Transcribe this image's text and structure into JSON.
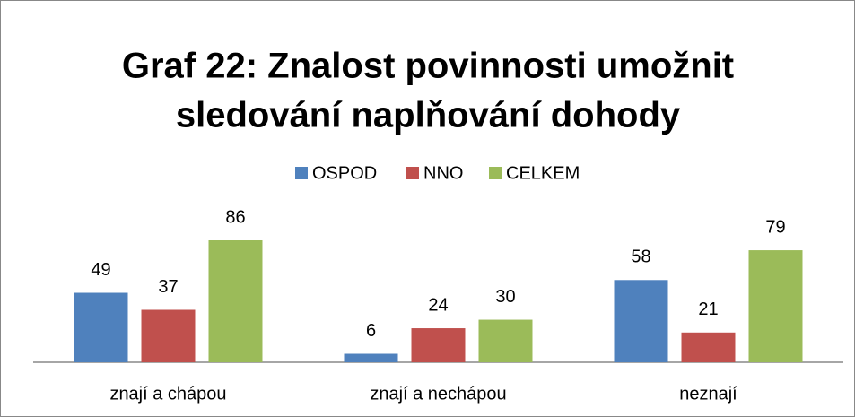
{
  "chart_data": {
    "type": "bar",
    "title": [
      "Graf 22: Znalost povinnosti umožnit",
      "sledování naplňování dohody"
    ],
    "categories": [
      "znají a chápou",
      "znají a nechápou",
      "neznají"
    ],
    "series": [
      {
        "name": "OSPOD",
        "color": "#4f81bd",
        "values": [
          49,
          6,
          58
        ]
      },
      {
        "name": "NNO",
        "color": "#c0504d",
        "values": [
          37,
          24,
          21
        ]
      },
      {
        "name": "CELKEM",
        "color": "#9bbb59",
        "values": [
          86,
          30,
          79
        ]
      }
    ],
    "legend": "top"
  }
}
